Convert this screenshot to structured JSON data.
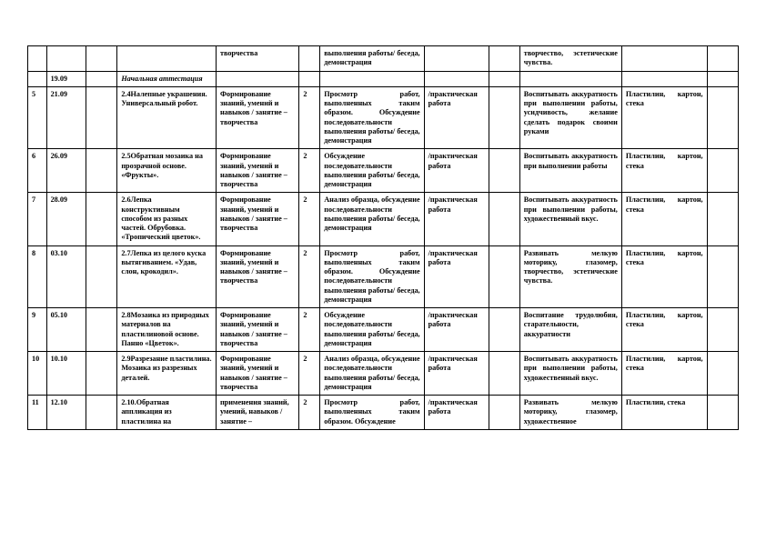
{
  "rows": [
    {
      "num": "",
      "date": "",
      "topic": "",
      "form": "творчества",
      "hours": "",
      "method": "выполнения работы/ беседа, демонстрация",
      "type": "",
      "edu": "творчество, эстетические чувства.",
      "mat": ""
    },
    {
      "num": "",
      "date": "19.09",
      "topic_italic": "Начальная аттестация",
      "form": "",
      "hours": "",
      "method": "",
      "type": "",
      "edu": "",
      "mat": ""
    },
    {
      "num": "5",
      "date": "21.09",
      "topic": "2.4Налепные украшения. Универсальный робот.",
      "form": "Формирование знаний, умений и навыков / занятие – творчества",
      "hours": "2",
      "method": "Просмотр работ, выполненных таким образом. Обсуждение последовательности выполнения работы/ беседа, демонстрация",
      "type": "/практическая работа",
      "edu": "Воспитывать аккуратность при выполнении работы, усидчивость, желание сделать подарок своими руками",
      "mat": "Пластилин, картон, стека"
    },
    {
      "num": "6",
      "date": "26.09",
      "topic": "2.5Обратная мозаика на прозрачной основе. «Фрукты».",
      "form": "Формирование знаний, умений и навыков / занятие – творчества",
      "hours": "2",
      "method": "Обсуждение последовательности выполнения работы/ беседа, демонстрация",
      "type": "/практическая работа",
      "edu": "Воспитывать аккуратность при выполнении работы",
      "mat": "Пластилин, картон, стека"
    },
    {
      "num": "7",
      "date": "28.09",
      "topic": "2.6Лепка конструктивным способом из разных частей. Обрубовка. «Тропический цветок».",
      "form": "Формирование знаний, умений и навыков / занятие – творчества",
      "hours": "2",
      "method": "Анализ образца, обсуждение последовательности выполнения работы/ беседа, демонстрация",
      "type": "/практическая работа",
      "edu": "Воспитывать аккуратность при выполнении работы, художественный вкус.",
      "mat": "Пластилин, картон, стека"
    },
    {
      "num": "8",
      "date": "03.10",
      "topic": "2.7Лепка из целого куска вытягиванием. «Удав, слон, крокодил».",
      "form": "Формирование знаний, умений и навыков / занятие – творчества",
      "hours": "2",
      "method": "Просмотр работ, выполненных таким образом. Обсуждение последовательности выполнения работы/ беседа, демонстрация",
      "type": "/практическая работа",
      "edu": "Развивать мелкую моторику, глазомер, творчество, эстетические чувства.",
      "mat": "Пластилин, картон, стека"
    },
    {
      "num": "9",
      "date": "05.10",
      "topic": "2.8Мозаика из природных материалов на пластилиновой основе. Панно «Цветок».",
      "form": "Формирование знаний, умений и навыков / занятие – творчества",
      "hours": "2",
      "method": "Обсуждение последовательности выполнения работы/ беседа, демонстрация",
      "type": "/практическая работа",
      "edu": "Воспитание трудолюбия, старательности, аккуратности",
      "mat": "Пластилин, картон, стека"
    },
    {
      "num": "10",
      "date": "10.10",
      "topic": "2.9Разрезание пластилина. Мозаика из разрезных деталей.",
      "form": "Формирование знаний, умений и навыков / занятие – творчества",
      "hours": "2",
      "method": "Анализ образца, обсуждение последовательности выполнения работы/ беседа, демонстрация",
      "type": "/практическая работа",
      "edu": "Воспитывать аккуратность при выполнении работы, художественный вкус.",
      "mat": "Пластилин, картон, стека"
    },
    {
      "num": "11",
      "date": "12.10",
      "topic": "2.10.Обратная аппликация из пластилина на",
      "form": "применения знаний, умений, навыков / занятие –",
      "hours": "2",
      "method": "Просмотр работ, выполненных таким образом. Обсуждение",
      "type": "/практическая работа",
      "edu": "Развивать мелкую моторику, глазомер, художественное",
      "mat": "Пластилин, стека"
    }
  ]
}
